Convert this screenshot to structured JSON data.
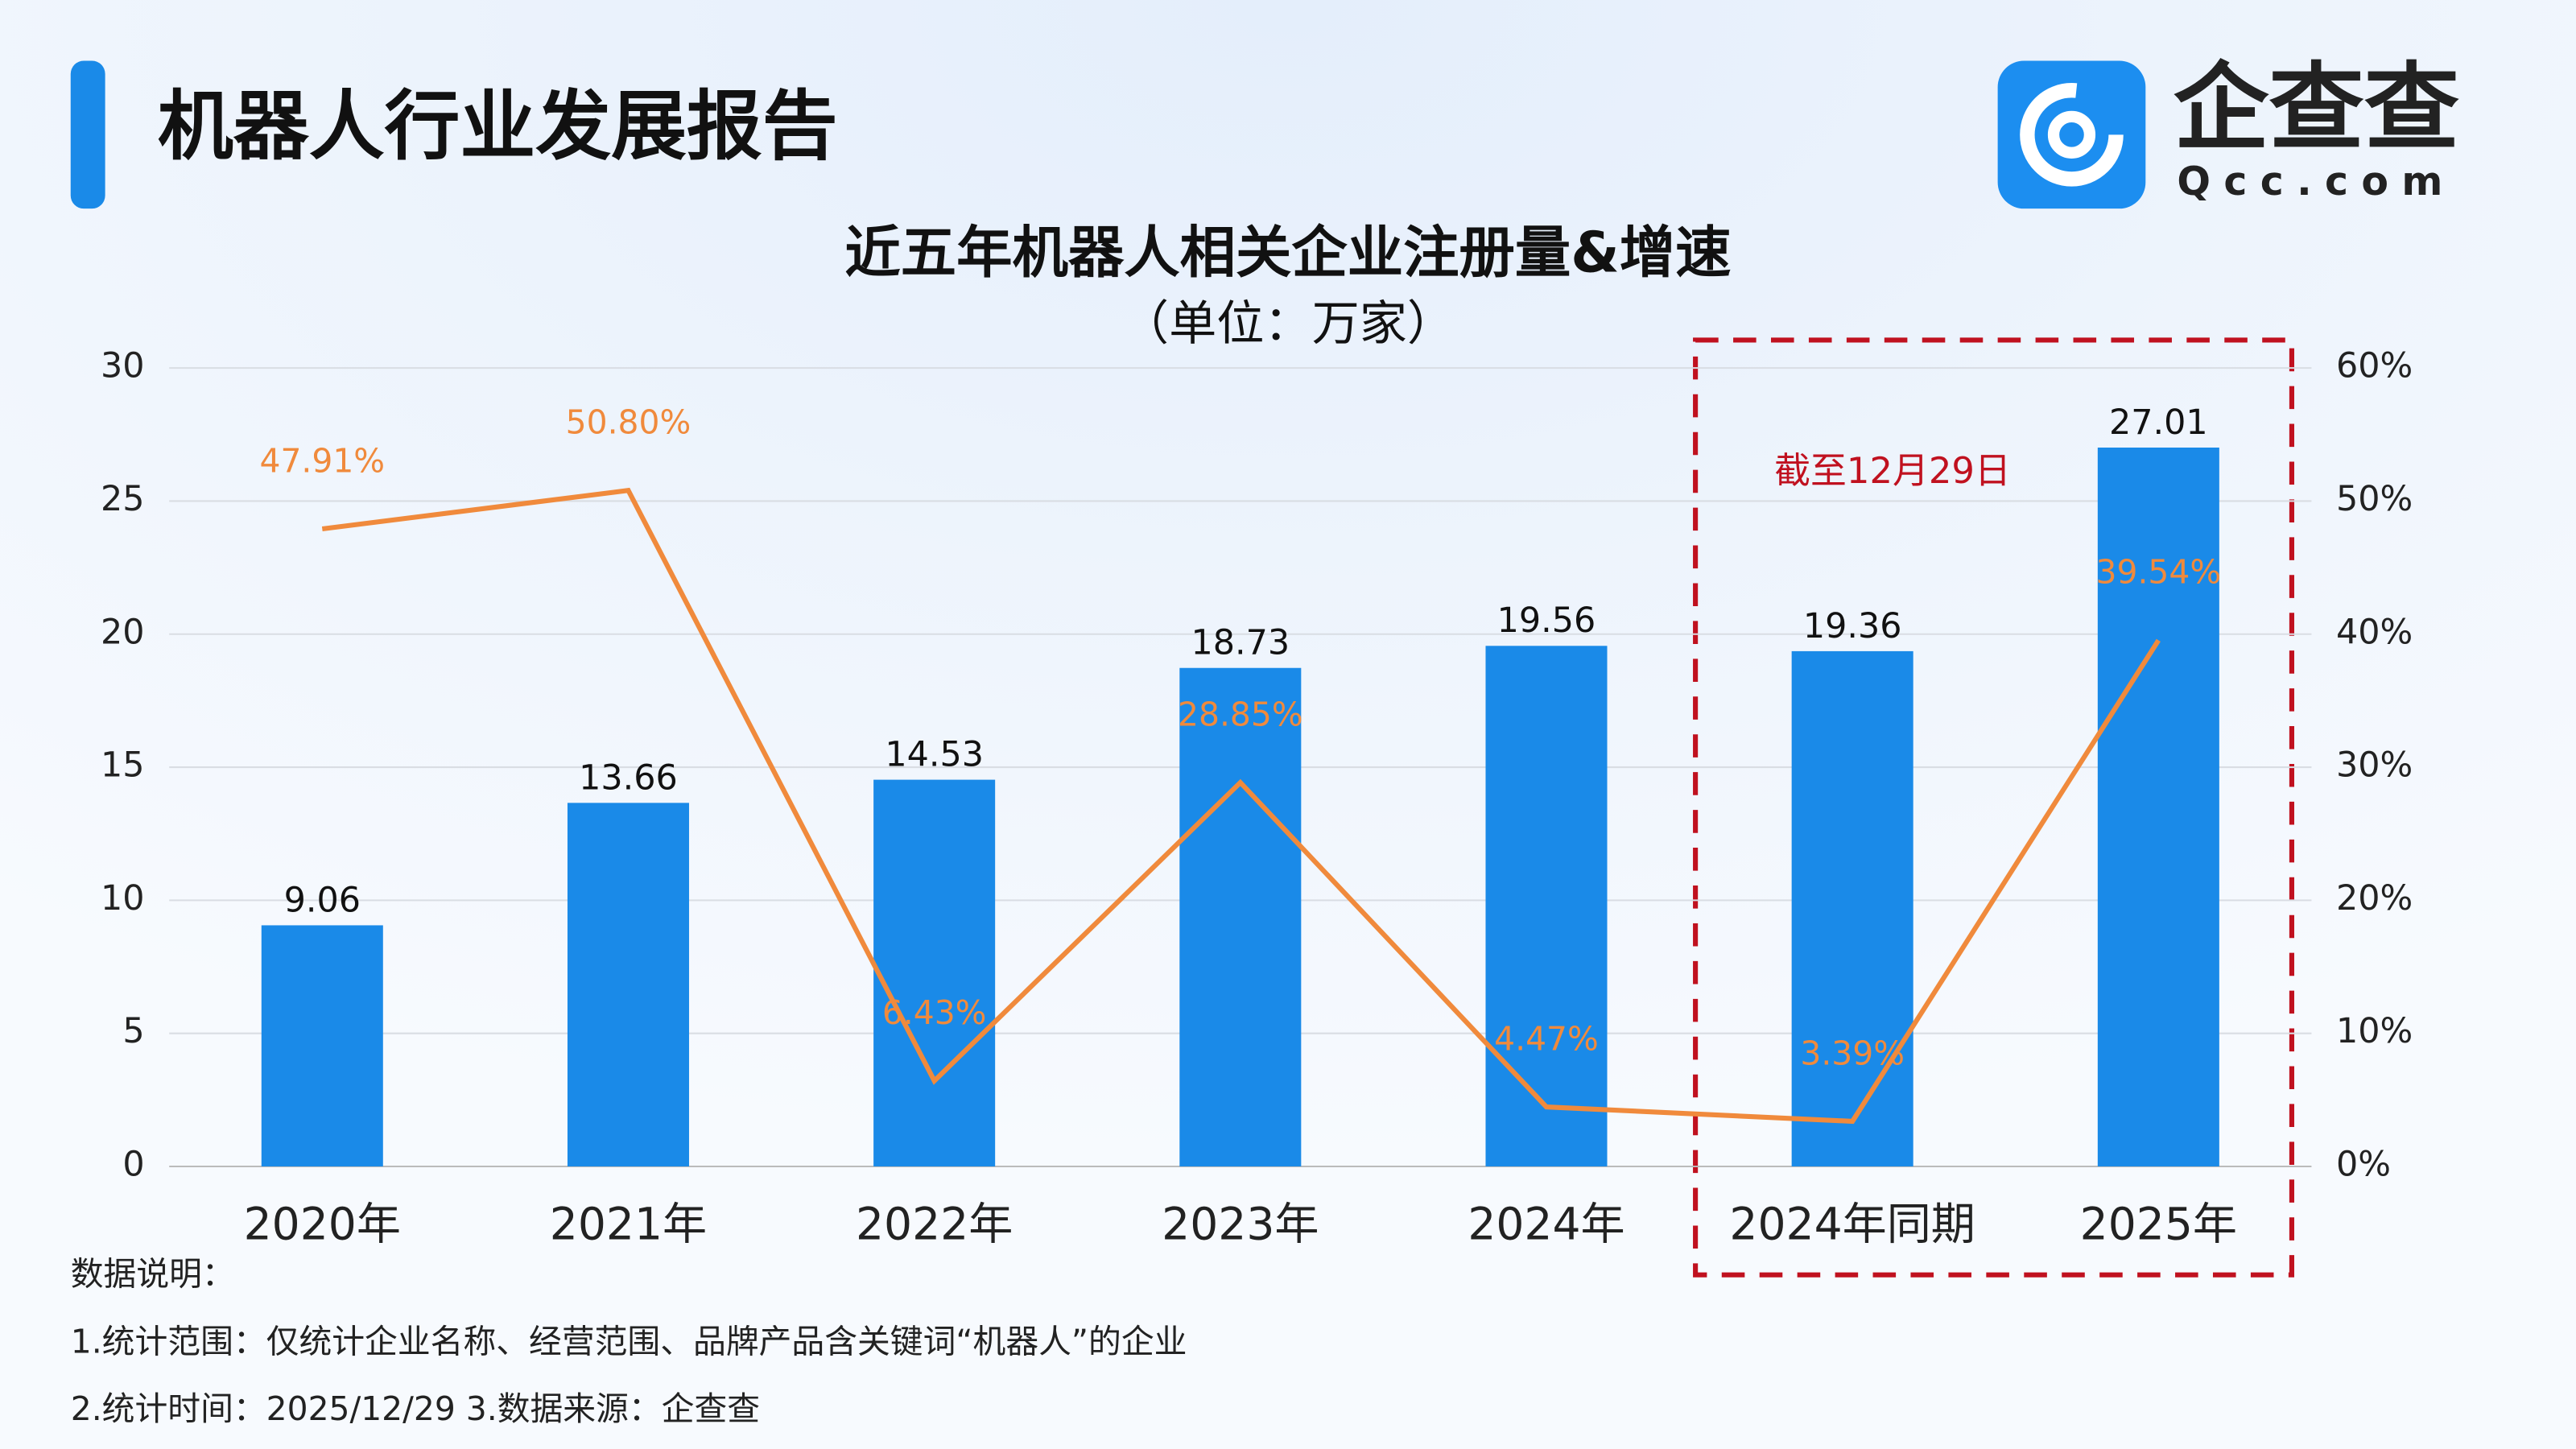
{
  "header": {
    "title": "机器人行业发展报告",
    "logo": "企查查",
    "logo_sub": "Qcc.com"
  },
  "chart_data": {
    "type": "bar",
    "title": "近五年机器人相关企业注册量&增速",
    "subtitle": "（单位：万家）",
    "annotation": "截至12月29日",
    "categories": [
      "2020年",
      "2021年",
      "2022年",
      "2023年",
      "2024年",
      "2024年同期",
      "2025年"
    ],
    "series": [
      {
        "type": "bar",
        "color": "#1a8ae8",
        "values": [
          9.06,
          13.66,
          14.53,
          18.73,
          19.56,
          19.36,
          27.01
        ]
      },
      {
        "type": "line",
        "axis": "y2",
        "color": "#f08a3c",
        "values": [
          47.91,
          50.8,
          6.43,
          28.85,
          4.47,
          3.39,
          39.54
        ],
        "value_labels": [
          "47.91%",
          "50.80%",
          "6.43%",
          "28.85%",
          "4.47%",
          "3.39%",
          "39.54%"
        ]
      }
    ],
    "ylim": [
      0,
      30
    ],
    "yticks": [
      0,
      5,
      10,
      15,
      20,
      25,
      30
    ],
    "y2lim": [
      0,
      60
    ],
    "y2ticks": [
      {
        "value": 0,
        "label": "0%"
      },
      {
        "value": 10,
        "label": "10%"
      },
      {
        "value": 20,
        "label": "20%"
      },
      {
        "value": 30,
        "label": "30%"
      },
      {
        "value": 40,
        "label": "40%"
      },
      {
        "value": 50,
        "label": "50%"
      },
      {
        "value": 60,
        "label": "60%"
      }
    ],
    "grid": true
  },
  "notes": [
    "数据说明：",
    "1.统计范围：仅统计企业名称、经营范围、品牌产品含关键词“机器人”的企业",
    "2.统计时间：2025/12/29   3.数据来源：企查查"
  ]
}
